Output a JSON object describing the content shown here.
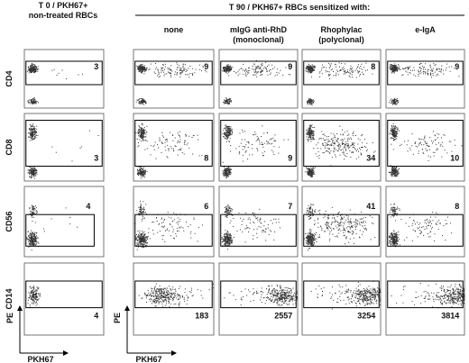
{
  "header": {
    "left": [
      "T 0 / PKH67+",
      "non-treated RBCs"
    ],
    "right": "T 90 / PKH67+ RBCs sensitized with:"
  },
  "columns": [
    [
      "none"
    ],
    [
      "mIgG anti-RhD",
      "(monoclonal)"
    ],
    [
      "Rhophylac",
      "(polyclonal)"
    ],
    [
      "e-IgA"
    ]
  ],
  "rows": [
    {
      "marker": "CD4",
      "values": [
        3,
        9,
        9,
        8,
        9
      ]
    },
    {
      "marker": "CD8",
      "values": [
        3,
        8,
        9,
        34,
        10
      ]
    },
    {
      "marker": "CD56",
      "values": [
        4,
        6,
        7,
        41,
        8
      ]
    },
    {
      "marker": "CD14",
      "values": [
        4,
        183,
        2557,
        3254,
        3814
      ]
    }
  ],
  "axes": {
    "y": "PE",
    "x": "PKH67"
  }
}
